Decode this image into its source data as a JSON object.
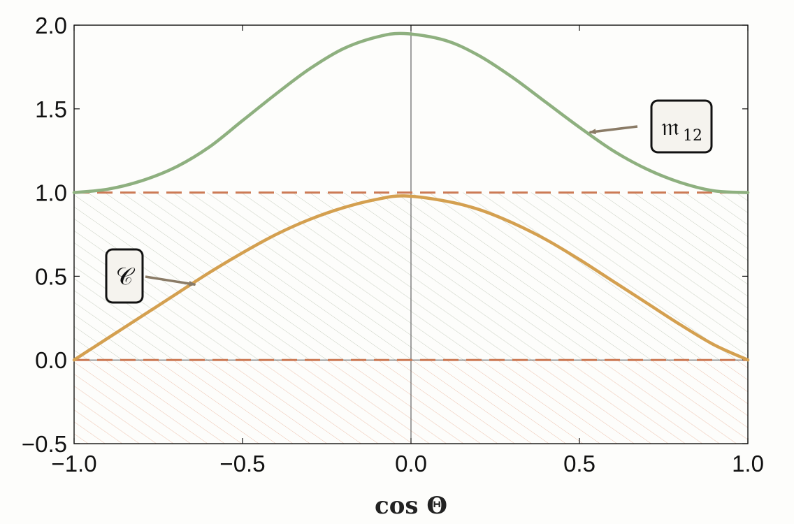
{
  "chart_data": {
    "type": "line",
    "xlabel": "cos Θ",
    "ylabel": "",
    "xlim": [
      -1.0,
      1.0
    ],
    "ylim": [
      -0.5,
      2.0
    ],
    "x_ticks": [
      "−1.0",
      "−0.5",
      "0.0",
      "0.5",
      "1.0"
    ],
    "y_ticks": [
      "−0.5",
      "0.0",
      "0.5",
      "1.0",
      "1.5",
      "2.0"
    ],
    "x_tick_values": [
      -1.0,
      -0.5,
      0.0,
      0.5,
      1.0
    ],
    "y_tick_values": [
      -0.5,
      0.0,
      0.5,
      1.0,
      1.5,
      2.0
    ],
    "grid": false,
    "series": [
      {
        "name": "𝔪12",
        "color": "#8eb07f",
        "x": [
          -1.0,
          -0.9,
          -0.8,
          -0.7,
          -0.6,
          -0.5,
          -0.4,
          -0.3,
          -0.2,
          -0.1,
          -0.02,
          0.1,
          0.2,
          0.3,
          0.4,
          0.5,
          0.6,
          0.7,
          0.8,
          0.9,
          1.0
        ],
        "y": [
          1.0,
          1.02,
          1.07,
          1.15,
          1.27,
          1.43,
          1.59,
          1.74,
          1.86,
          1.93,
          1.95,
          1.91,
          1.82,
          1.69,
          1.54,
          1.39,
          1.25,
          1.14,
          1.06,
          1.01,
          1.0
        ]
      },
      {
        "name": "𝒞",
        "color": "#d4a050",
        "x": [
          -1.0,
          -0.9,
          -0.8,
          -0.7,
          -0.6,
          -0.5,
          -0.4,
          -0.3,
          -0.2,
          -0.1,
          -0.02,
          0.1,
          0.2,
          0.3,
          0.4,
          0.5,
          0.6,
          0.7,
          0.8,
          0.9,
          1.0
        ],
        "y": [
          0.0,
          0.13,
          0.26,
          0.39,
          0.52,
          0.64,
          0.75,
          0.84,
          0.91,
          0.96,
          0.98,
          0.95,
          0.9,
          0.82,
          0.72,
          0.6,
          0.47,
          0.34,
          0.21,
          0.09,
          0.0
        ]
      }
    ],
    "reference_lines": [
      {
        "y": 1.0,
        "style": "dashed",
        "color": "#cc7a55"
      },
      {
        "y": 0.0,
        "style": "dashed",
        "color": "#cc7a55"
      }
    ],
    "shaded_regions": [
      {
        "y_from": 0.0,
        "y_to": 1.0,
        "pattern": "hatch",
        "color": "#b9c2b0"
      },
      {
        "y_from": -0.5,
        "y_to": 0.0,
        "pattern": "hatch",
        "color": "#e9b9a2"
      }
    ],
    "annotations": [
      {
        "label": "𝔪",
        "sub": "12",
        "target_x": 0.53,
        "target_y": 1.36
      },
      {
        "label": "𝒞",
        "sub": "",
        "target_x": -0.64,
        "target_y": 0.45
      }
    ]
  }
}
